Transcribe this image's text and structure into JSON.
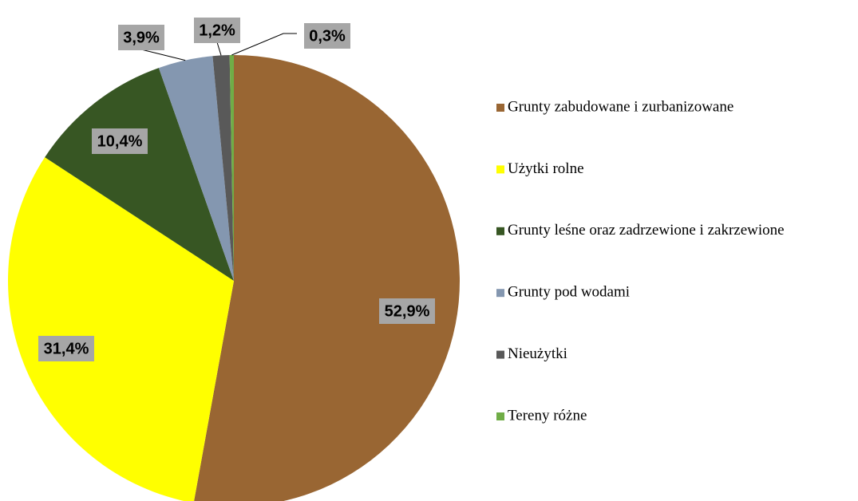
{
  "chart_data": {
    "type": "pie",
    "categories": [
      "Grunty zabudowane i zurbanizowane",
      "Użytki rolne",
      "Grunty leśne oraz zadrzewione i zakrzewione",
      "Grunty pod wodami",
      "Nieużytki",
      "Tereny różne"
    ],
    "values": [
      52.9,
      31.4,
      10.4,
      3.9,
      1.2,
      0.3
    ],
    "value_labels": [
      "52,9%",
      "31,4%",
      "10,4%",
      "3,9%",
      "1,2%",
      "0,3%"
    ],
    "colors": [
      "#996633",
      "#ffff00",
      "#375623",
      "#8497b0",
      "#595959",
      "#70ad47"
    ],
    "legend": "right"
  }
}
